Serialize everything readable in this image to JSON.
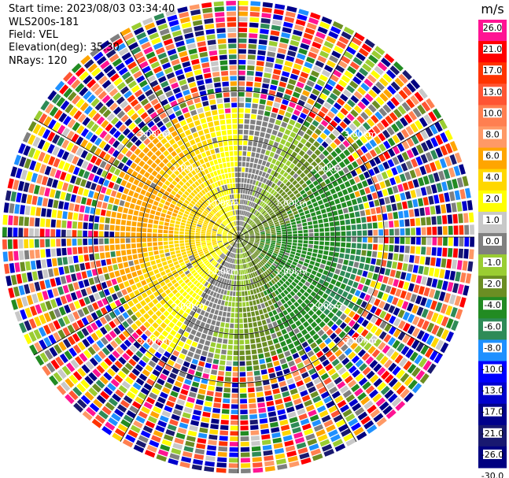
{
  "header": {
    "start_time": "Start time: 2023/08/03 03:34:40",
    "instrument": "WLS200s-181",
    "field": "Field: VEL",
    "elevation": "Elevation(deg): 35.30",
    "nrays": "NRays: 120"
  },
  "chart_data": {
    "type": "heatmap",
    "projection": "polar",
    "field": "VEL",
    "units": "m/s",
    "n_rays": 120,
    "range_rings_km": [
      1.0,
      2.0,
      3.0
    ],
    "range_ring_labels": [
      "1.00km",
      "2.00km",
      "3.00km"
    ],
    "azimuth_spokes_deg": [
      0,
      30,
      60,
      90,
      120,
      150,
      180,
      210,
      240,
      270,
      300,
      330
    ],
    "colorbar": {
      "label": "m/s",
      "ticks": [
        "26.0",
        "21.0",
        "17.0",
        "13.0",
        "10.0",
        "8.0",
        "6.0",
        "4.0",
        "2.0",
        "1.0",
        "0.0",
        "-1.0",
        "-2.0",
        "-4.0",
        "-6.0",
        "-8.0",
        "-10.0",
        "-13.0",
        "-17.0",
        "-21.0",
        "-26.0",
        "-30.0"
      ],
      "colors": [
        "#ff1493",
        "#ff0000",
        "#ff3300",
        "#ff5533",
        "#ff7f50",
        "#ff9966",
        "#ffa500",
        "#ffd700",
        "#ffff00",
        "#c8c8c8",
        "#808080",
        "#9acd32",
        "#6b8e23",
        "#228b22",
        "#2e8b57",
        "#1e90ff",
        "#0000ff",
        "#0000cd",
        "#00008b",
        "#191970",
        "#000080"
      ]
    },
    "pattern": {
      "negative_sector": "east / south-east",
      "positive_sector": "west / north-west",
      "noise_beyond_km": 2.6
    }
  }
}
